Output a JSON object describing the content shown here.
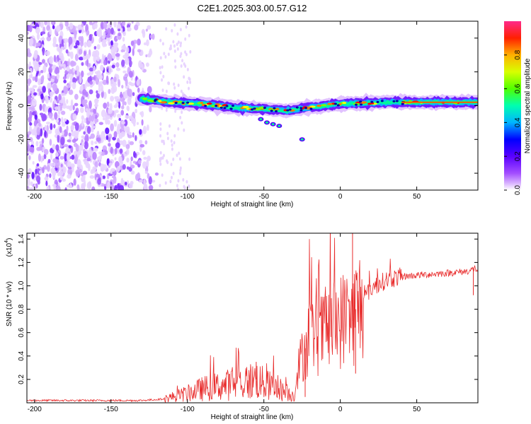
{
  "title": "C2E1.2025.303.00.57.G12",
  "chart_data": [
    {
      "type": "heatmap",
      "title": "C2E1.2025.303.00.57.G12",
      "xlabel": "Height of straight line (km)",
      "ylabel": "Frequency (Hz)",
      "xlim": [
        -205,
        90
      ],
      "ylim": [
        -50,
        50
      ],
      "xticks": [
        -200,
        -150,
        -100,
        -50,
        0,
        50
      ],
      "yticks": [
        -40,
        -20,
        0,
        20,
        40
      ],
      "colorbar": {
        "label": "Normalized spectral amplitude",
        "range": [
          0,
          1
        ],
        "ticks": [
          "0.0",
          "0.2",
          "0.4",
          "0.6",
          "0.8"
        ],
        "colors": [
          "#ffffff",
          "#b14cff",
          "#6a00ff",
          "#0000ff",
          "#00c8ff",
          "#00ff90",
          "#7cff00",
          "#ffff00",
          "#ff7a00",
          "#ff0000",
          "#ff2a8a"
        ]
      },
      "signal_trace": [
        {
          "x": -130,
          "freq": 4
        },
        {
          "x": -110,
          "freq": 2
        },
        {
          "x": -90,
          "freq": 1
        },
        {
          "x": -70,
          "freq": -1
        },
        {
          "x": -50,
          "freq": -2
        },
        {
          "x": -35,
          "freq": -3
        },
        {
          "x": -20,
          "freq": -1
        },
        {
          "x": 0,
          "freq": 1
        },
        {
          "x": 30,
          "freq": 2
        },
        {
          "x": 60,
          "freq": 2
        },
        {
          "x": 90,
          "freq": 2
        }
      ],
      "noise_region": {
        "x_from": -205,
        "x_to": -118,
        "density": "high"
      }
    },
    {
      "type": "line",
      "xlabel": "Height of straight line (km)",
      "ylabel": "SNR (10 * v/v)",
      "scale_label": "(x10",
      "scale_exp": "4",
      "scale_close": ")",
      "xlim": [
        -205,
        90
      ],
      "ylim": [
        0,
        1.45
      ],
      "xticks": [
        -200,
        -150,
        -100,
        -50,
        0,
        50
      ],
      "yticks": [
        0.2,
        0.4,
        0.6,
        0.8,
        1.0,
        1.2,
        1.4
      ],
      "color": "#e82b2b",
      "series": [
        {
          "name": "SNR",
          "x": [
            -205,
            -180,
            -150,
            -130,
            -118,
            -110,
            -100,
            -90,
            -80,
            -70,
            -60,
            -55,
            -50,
            -45,
            -40,
            -35,
            -30,
            -28,
            -25,
            -22,
            -20,
            -15,
            -10,
            -5,
            0,
            5,
            8,
            10,
            15,
            20,
            30,
            40,
            50,
            60,
            70,
            80,
            85,
            88,
            90
          ],
          "y": [
            0.02,
            0.02,
            0.02,
            0.02,
            0.03,
            0.05,
            0.08,
            0.12,
            0.14,
            0.16,
            0.18,
            0.2,
            0.16,
            0.14,
            0.12,
            0.08,
            0.06,
            0.28,
            0.4,
            0.5,
            0.6,
            0.55,
            0.62,
            0.66,
            0.7,
            0.74,
            0.7,
            0.8,
            0.88,
            0.98,
            1.05,
            1.08,
            1.09,
            1.1,
            1.11,
            1.12,
            1.13,
            1.15,
            1.13
          ]
        }
      ],
      "spikes": [
        {
          "x": 8,
          "y": 1.45
        },
        {
          "x": 10,
          "y": 0.25
        },
        {
          "x": -55,
          "y": 0.35
        },
        {
          "x": -23,
          "y": 0.05
        },
        {
          "x": 87,
          "y": 0.92
        }
      ]
    }
  ]
}
